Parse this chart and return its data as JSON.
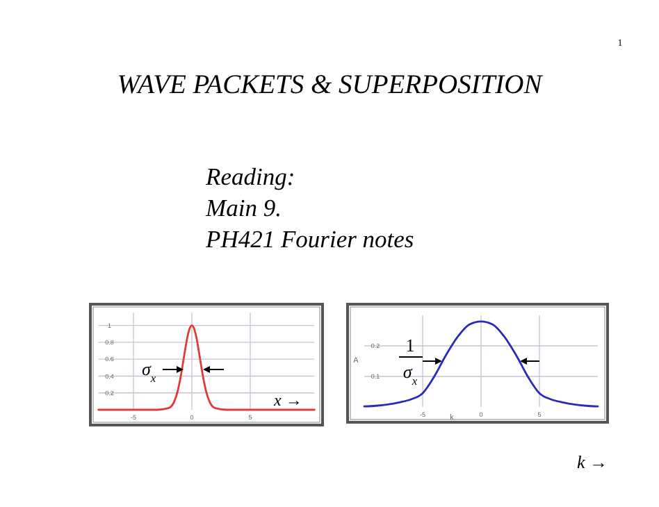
{
  "chart_data": [
    {
      "type": "line",
      "title": "WAVE PACKETS & SUPERPOSITION",
      "xlabel": "x →",
      "annotations": [
        "1",
        "Reading:",
        "Main 9.",
        "PH421 Fourier notes",
        "σ$_{x}$"
      ],
      "x": [
        -8,
        -3,
        -2,
        -1.5,
        -1.2,
        -1,
        -0.8,
        -0.6,
        -0.4,
        -0.2,
        0,
        0.2,
        0.4,
        0.6,
        0.8,
        1,
        1.2,
        1.5,
        2,
        3,
        10.5
      ],
      "series": [
        {
          "color": "#e03a3a",
          "values": [
            0,
            0,
            0.02,
            0.1,
            0.23,
            0.36,
            0.52,
            0.69,
            0.85,
            0.96,
            1,
            0.96,
            0.85,
            0.69,
            0.52,
            0.36,
            0.23,
            0.1,
            0.02,
            0,
            0
          ]
        }
      ],
      "xlim": [
        -8,
        10.5
      ],
      "ylim": [
        0,
        1.15
      ],
      "xticks": [
        -5,
        0,
        5
      ],
      "yticks": [
        0.2,
        0.4,
        0.6,
        0.8,
        1
      ],
      "grid": true,
      "marker": "none",
      "line_style": "solid"
    },
    {
      "type": "line",
      "xlabel": "k",
      "ylabel": "A",
      "annotations": [
        "1",
        "σ$_{x}$",
        "k →"
      ],
      "x": [
        -10,
        -9,
        -8,
        -7,
        -6,
        -5,
        -4,
        -3,
        -2,
        -1,
        0,
        1,
        2,
        3,
        4,
        5,
        6,
        7,
        8,
        9,
        10
      ],
      "series": [
        {
          "color": "#2a2ab8",
          "values": [
            0.002,
            0.004,
            0.008,
            0.015,
            0.025,
            0.045,
            0.1,
            0.17,
            0.23,
            0.27,
            0.28,
            0.27,
            0.23,
            0.17,
            0.1,
            0.045,
            0.025,
            0.015,
            0.008,
            0.004,
            0.002
          ]
        }
      ],
      "xlim": [
        -10,
        10
      ],
      "ylim": [
        0,
        0.3
      ],
      "xticks": [
        -5,
        0,
        5
      ],
      "yticks": [
        0.1,
        0.2
      ],
      "grid": true,
      "marker": "none",
      "line_style": "solid"
    }
  ]
}
